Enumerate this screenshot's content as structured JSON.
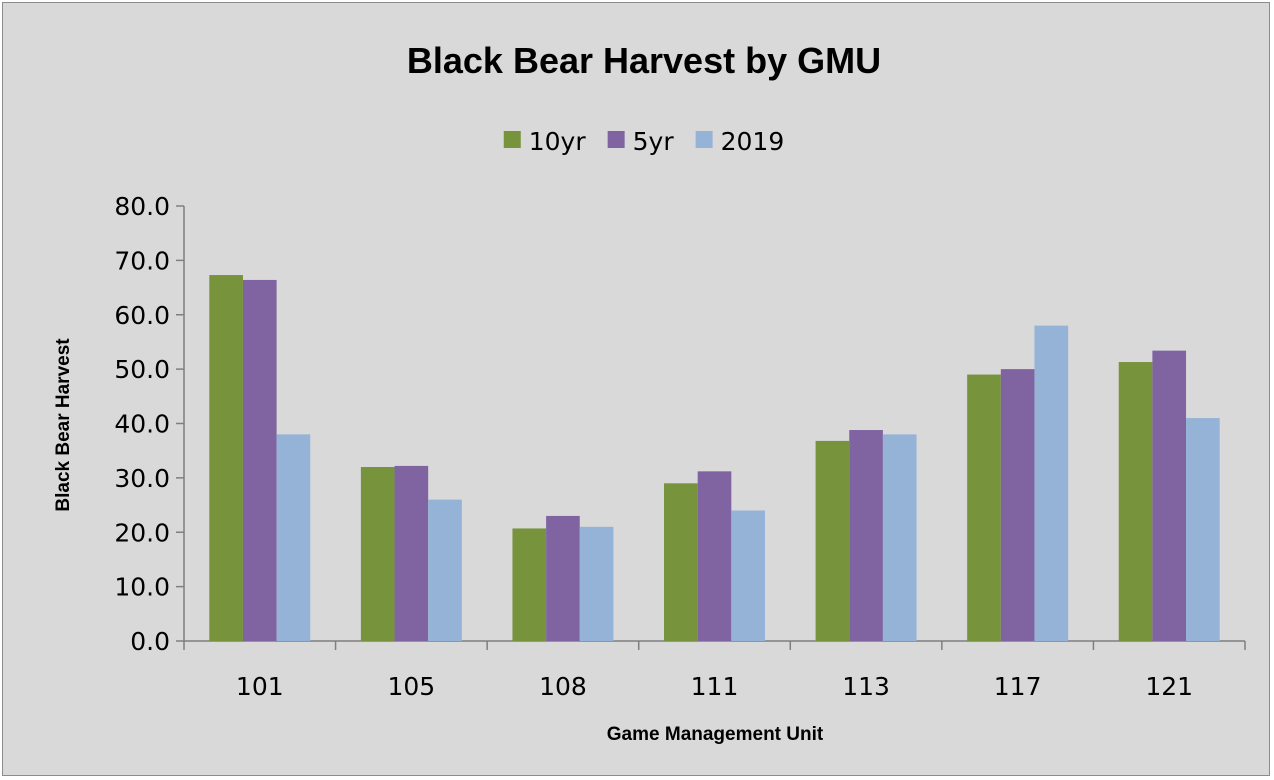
{
  "chart_data": {
    "type": "bar",
    "title": "Black Bear Harvest by GMU",
    "xlabel": "Game Management Unit",
    "ylabel": "Black Bear Harvest",
    "categories": [
      "101",
      "105",
      "108",
      "111",
      "113",
      "117",
      "121"
    ],
    "series": [
      {
        "name": "10yr",
        "color": "#77933c",
        "values": [
          67.3,
          32.0,
          20.7,
          29.0,
          36.8,
          49.0,
          51.3
        ]
      },
      {
        "name": "5yr",
        "color": "#8064a2",
        "values": [
          66.4,
          32.2,
          23.0,
          31.2,
          38.8,
          50.0,
          53.4
        ]
      },
      {
        "name": "2019",
        "color": "#95b3d7",
        "values": [
          38.0,
          26.0,
          21.0,
          24.0,
          38.0,
          58.0,
          41.0
        ]
      }
    ],
    "ylim": [
      0,
      80
    ],
    "yticks": [
      "0.0",
      "10.0",
      "20.0",
      "30.0",
      "40.0",
      "50.0",
      "60.0",
      "70.0",
      "80.0"
    ],
    "grid": false,
    "legend_position": "top"
  }
}
